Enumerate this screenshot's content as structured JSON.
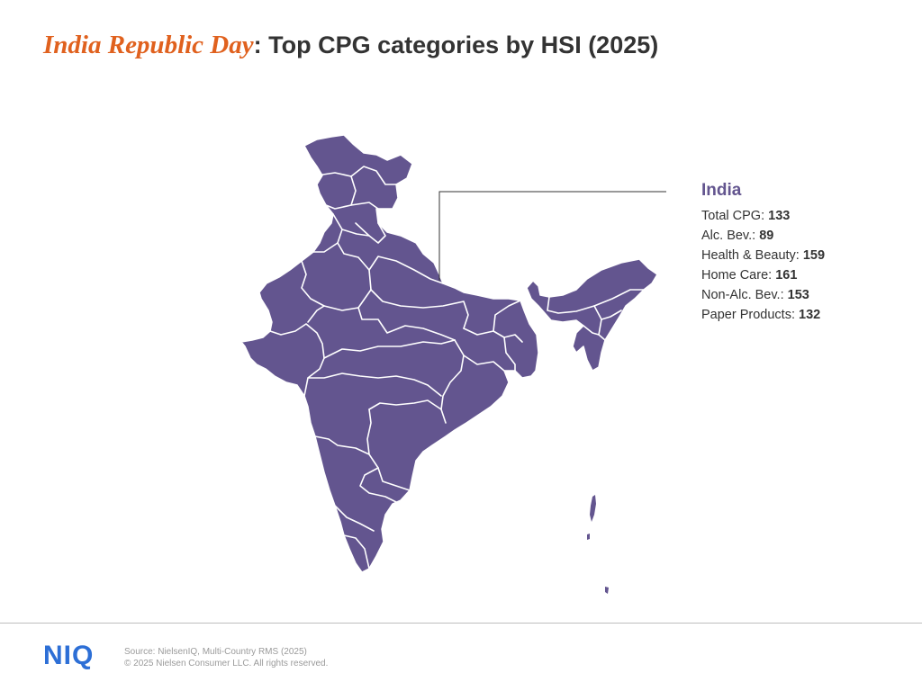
{
  "header": {
    "title_accent": "India Republic Day",
    "title_rest": ": Top CPG categories by HSI (2025)"
  },
  "map": {
    "fill_color": "#63558f",
    "border_color": "#ffffff"
  },
  "info_panel": {
    "region": "India",
    "rows": [
      {
        "label": "Total CPG: ",
        "value": "133"
      },
      {
        "label": "Alc. Bev.: ",
        "value": "89"
      },
      {
        "label": "Health & Beauty: ",
        "value": "159"
      },
      {
        "label": "Home Care: ",
        "value": "161"
      },
      {
        "label": "Non-Alc. Bev.: ",
        "value": "153"
      },
      {
        "label": "Paper Products: ",
        "value": "132"
      }
    ]
  },
  "footer": {
    "logo": "NIQ",
    "source": "Source: NielsenIQ, Multi-Country RMS (2025)",
    "copyright": "© 2025 Nielsen Consumer LLC. All rights reserved."
  }
}
